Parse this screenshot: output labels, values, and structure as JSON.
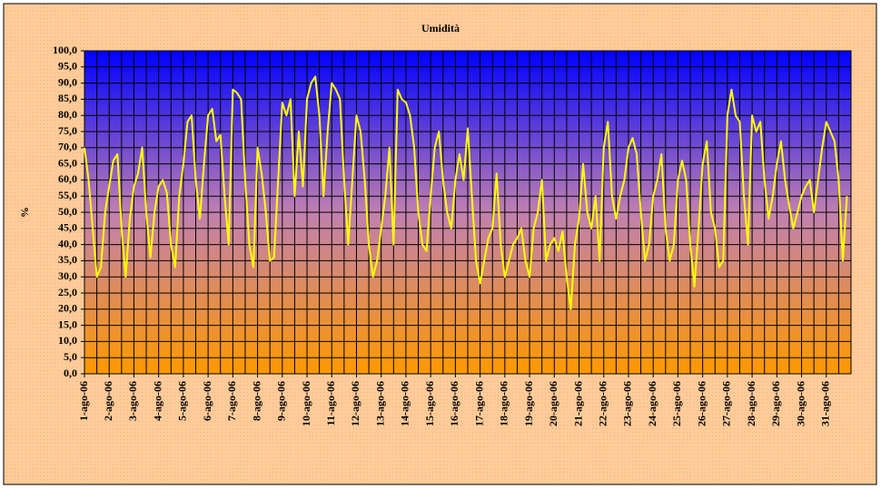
{
  "chart_data": {
    "type": "line",
    "title": "Umidità",
    "y_label": "%",
    "categories": [
      "1-ago-06",
      null,
      null,
      null,
      null,
      null,
      "2-ago-06",
      null,
      null,
      null,
      null,
      null,
      "3-ago-06",
      null,
      null,
      null,
      null,
      null,
      "4-ago-06",
      null,
      null,
      null,
      null,
      null,
      "5-ago-06",
      null,
      null,
      null,
      null,
      null,
      "6-ago-06",
      null,
      null,
      null,
      null,
      null,
      "7-ago-06",
      null,
      null,
      null,
      null,
      null,
      "8-ago-06",
      null,
      null,
      null,
      null,
      null,
      "9-ago-06",
      null,
      null,
      null,
      null,
      null,
      "10-ago-06",
      null,
      null,
      null,
      null,
      null,
      "11-ago-06",
      null,
      null,
      null,
      null,
      null,
      "12-ago-06",
      null,
      null,
      null,
      null,
      null,
      "13-ago-06",
      null,
      null,
      null,
      null,
      null,
      "14-ago-06",
      null,
      null,
      null,
      null,
      null,
      "15-ago-06",
      null,
      null,
      null,
      null,
      null,
      "16-ago-06",
      null,
      null,
      null,
      null,
      null,
      "17-ago-06",
      null,
      null,
      null,
      null,
      null,
      "18-ago-06",
      null,
      null,
      null,
      null,
      null,
      "19-ago-06",
      null,
      null,
      null,
      null,
      null,
      "20-ago-06",
      null,
      null,
      null,
      null,
      null,
      "21-ago-06",
      null,
      null,
      null,
      null,
      null,
      "22-ago-06",
      null,
      null,
      null,
      null,
      null,
      "23-ago-06",
      null,
      null,
      null,
      null,
      null,
      "24-ago-06",
      null,
      null,
      null,
      null,
      null,
      "25-ago-06",
      null,
      null,
      null,
      null,
      null,
      "26-ago-06",
      null,
      null,
      null,
      null,
      null,
      "27-ago-06",
      null,
      null,
      null,
      null,
      null,
      "28-ago-06",
      null,
      null,
      null,
      null,
      null,
      "29-ago-06",
      null,
      null,
      null,
      null,
      null,
      "30-ago-06",
      null,
      null,
      null,
      null,
      null,
      "31-ago-06",
      null,
      null,
      null,
      null,
      null
    ],
    "series": [
      {
        "name": "Umidità",
        "color": "#ffff00",
        "values": [
          70,
          60,
          45,
          30,
          33,
          50,
          58,
          66,
          68,
          45,
          30,
          48,
          58,
          62,
          70,
          50,
          36,
          50,
          58,
          60,
          56,
          40,
          33,
          55,
          65,
          78,
          80,
          60,
          48,
          65,
          80,
          82,
          72,
          74,
          55,
          40,
          88,
          87,
          85,
          60,
          40,
          33,
          70,
          62,
          50,
          35,
          36,
          60,
          84,
          80,
          85,
          55,
          75,
          58,
          85,
          90,
          92,
          80,
          55,
          75,
          90,
          88,
          85,
          60,
          40,
          60,
          80,
          75,
          60,
          40,
          30,
          35,
          45,
          55,
          70,
          40,
          88,
          85,
          84,
          80,
          70,
          50,
          40,
          38,
          55,
          70,
          75,
          60,
          50,
          45,
          60,
          68,
          60,
          76,
          55,
          35,
          28,
          35,
          42,
          45,
          62,
          40,
          30,
          35,
          40,
          42,
          45,
          35,
          30,
          45,
          50,
          60,
          35,
          40,
          42,
          38,
          44,
          30,
          20,
          40,
          48,
          65,
          50,
          45,
          55,
          35,
          70,
          78,
          55,
          48,
          55,
          60,
          70,
          73,
          68,
          50,
          35,
          40,
          55,
          60,
          68,
          45,
          35,
          40,
          60,
          66,
          60,
          40,
          27,
          45,
          65,
          72,
          50,
          45,
          33,
          35,
          80,
          88,
          80,
          78,
          55,
          40,
          80,
          75,
          78,
          60,
          48,
          55,
          65,
          72,
          60,
          52,
          45,
          50,
          55,
          58,
          60,
          50,
          60,
          70,
          78,
          75,
          72,
          60,
          35,
          55
        ]
      }
    ],
    "ylim": [
      0,
      100
    ],
    "yticks": [
      {
        "value": 0,
        "label": "0,0"
      },
      {
        "value": 5,
        "label": "5,0"
      },
      {
        "value": 10,
        "label": "10,0"
      },
      {
        "value": 15,
        "label": "15,0"
      },
      {
        "value": 20,
        "label": "20,0"
      },
      {
        "value": 25,
        "label": "25,0"
      },
      {
        "value": 30,
        "label": "30,0"
      },
      {
        "value": 35,
        "label": "35,0"
      },
      {
        "value": 40,
        "label": "40,0"
      },
      {
        "value": 45,
        "label": "45,0"
      },
      {
        "value": 50,
        "label": "50,0"
      },
      {
        "value": 55,
        "label": "55,0"
      },
      {
        "value": 60,
        "label": "60,0"
      },
      {
        "value": 65,
        "label": "65,0"
      },
      {
        "value": 70,
        "label": "70,0"
      },
      {
        "value": 75,
        "label": "75,0"
      },
      {
        "value": 80,
        "label": "80,0"
      },
      {
        "value": 85,
        "label": "85,0"
      },
      {
        "value": 90,
        "label": "90,0"
      },
      {
        "value": 95,
        "label": "95,0"
      },
      {
        "value": 100,
        "label": "100,0"
      }
    ],
    "grid": true
  }
}
